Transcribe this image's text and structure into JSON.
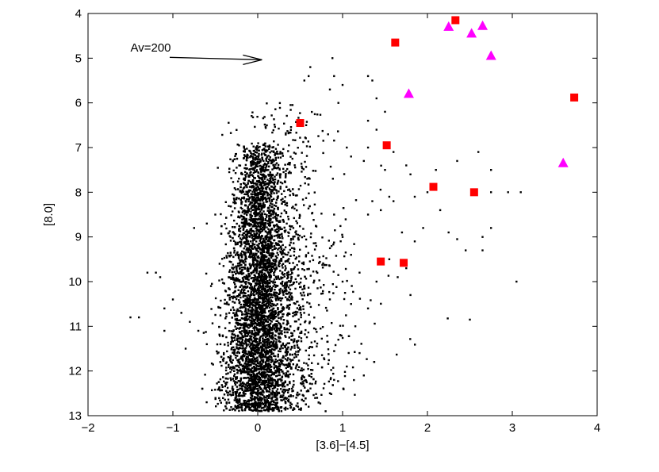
{
  "chart_data": {
    "type": "scatter",
    "title": "",
    "xlabel": "[3.6]−[4.5]",
    "ylabel": "[8.0]",
    "xlim": [
      -2,
      4
    ],
    "ylim": [
      13,
      4
    ],
    "y_inverted": true,
    "grid": false,
    "xticks": [
      -2,
      -1,
      0,
      1,
      2,
      3,
      4
    ],
    "yticks": [
      4,
      5,
      6,
      7,
      8,
      9,
      10,
      11,
      12,
      13
    ],
    "xtick_labels": [
      "−2",
      "−1",
      "0",
      "1",
      "2",
      "3",
      "4"
    ],
    "ytick_labels": [
      "4",
      "5",
      "6",
      "7",
      "8",
      "9",
      "10",
      "11",
      "12",
      "13"
    ],
    "annotation": {
      "text": "Av=200",
      "arrow_from": [
        -1.0,
        5.0
      ],
      "arrow_to": [
        0.05,
        5.0
      ]
    },
    "series": [
      {
        "marker": "dot",
        "color": "#000000",
        "cloud": [
          {
            "x_center": 0.0,
            "y_min": 6.9,
            "y_max": 12.9,
            "x_spread_top": 0.12,
            "x_spread_bottom": 0.22,
            "count": 5200
          },
          {
            "x_center": 0.25,
            "y_min": 6.0,
            "y_max": 12.6,
            "x_spread_top": 0.25,
            "x_spread_bottom": 0.35,
            "count": 900
          }
        ],
        "extra_points": [
          [
            0.6,
            5.4
          ],
          [
            0.62,
            5.2
          ],
          [
            0.88,
            5.0
          ],
          [
            0.9,
            5.4
          ],
          [
            1.0,
            5.6
          ],
          [
            0.85,
            5.7
          ],
          [
            0.55,
            5.5
          ],
          [
            1.3,
            5.4
          ],
          [
            1.35,
            5.5
          ],
          [
            1.4,
            5.9
          ],
          [
            0.95,
            6.0
          ],
          [
            1.5,
            6.2
          ],
          [
            1.3,
            6.4
          ],
          [
            1.4,
            6.6
          ],
          [
            1.3,
            7.0
          ],
          [
            1.05,
            7.0
          ],
          [
            1.1,
            7.2
          ],
          [
            1.25,
            7.3
          ],
          [
            1.5,
            7.5
          ],
          [
            1.6,
            7.1
          ],
          [
            1.8,
            7.6
          ],
          [
            1.75,
            7.4
          ],
          [
            1.85,
            8.1
          ],
          [
            1.55,
            8.1
          ],
          [
            1.6,
            8.2
          ],
          [
            1.35,
            8.2
          ],
          [
            1.3,
            8.5
          ],
          [
            1.45,
            8.4
          ],
          [
            1.7,
            8.9
          ],
          [
            1.85,
            9.1
          ],
          [
            1.95,
            8.8
          ],
          [
            1.55,
            9.5
          ],
          [
            1.75,
            9.7
          ],
          [
            1.65,
            9.9
          ],
          [
            1.8,
            10.3
          ],
          [
            1.3,
            10.6
          ],
          [
            1.4,
            10.0
          ],
          [
            2.0,
            8.0
          ],
          [
            2.15,
            8.4
          ],
          [
            2.25,
            8.9
          ],
          [
            2.45,
            9.3
          ],
          [
            2.35,
            7.3
          ],
          [
            2.1,
            7.5
          ],
          [
            2.75,
            8.0
          ],
          [
            2.95,
            8.0
          ],
          [
            2.75,
            8.8
          ],
          [
            2.65,
            9.0
          ],
          [
            2.65,
            9.3
          ],
          [
            3.05,
            10.0
          ],
          [
            2.5,
            10.85
          ],
          [
            2.6,
            7.1
          ],
          [
            2.75,
            7.5
          ],
          [
            3.1,
            8.0
          ],
          [
            2.35,
            9.05
          ],
          [
            -1.3,
            9.8
          ],
          [
            -1.2,
            9.8
          ],
          [
            -1.15,
            9.9
          ],
          [
            -1.5,
            10.8
          ],
          [
            -1.4,
            10.8
          ],
          [
            -1.1,
            10.6
          ],
          [
            -1.0,
            10.4
          ],
          [
            -0.9,
            10.7
          ],
          [
            -0.8,
            10.9
          ],
          [
            -0.7,
            11.1
          ],
          [
            -0.75,
            8.8
          ],
          [
            -0.6,
            8.7
          ],
          [
            -0.5,
            8.5
          ],
          [
            -0.45,
            9.6
          ],
          [
            -0.55,
            10.1
          ],
          [
            -0.6,
            11.4
          ],
          [
            -0.4,
            11.6
          ],
          [
            -1.1,
            11.1
          ],
          [
            -0.85,
            11.5
          ],
          [
            0.9,
            8.5
          ],
          [
            1.0,
            9.0
          ],
          [
            1.1,
            9.4
          ],
          [
            1.2,
            9.8
          ],
          [
            1.0,
            10.0
          ],
          [
            1.1,
            10.5
          ],
          [
            1.15,
            11.0
          ],
          [
            0.95,
            11.3
          ],
          [
            1.2,
            11.6
          ],
          [
            1.05,
            11.9
          ],
          [
            0.9,
            12.2
          ],
          [
            0.85,
            12.5
          ],
          [
            1.25,
            12.1
          ],
          [
            0.8,
            12.9
          ],
          [
            0.6,
            12.8
          ],
          [
            0.7,
            12.6
          ]
        ]
      },
      {
        "marker": "square",
        "color": "#ff0000",
        "points": [
          [
            2.33,
            4.15
          ],
          [
            1.62,
            4.65
          ],
          [
            3.73,
            5.88
          ],
          [
            0.5,
            6.45
          ],
          [
            1.52,
            6.95
          ],
          [
            2.07,
            7.88
          ],
          [
            2.55,
            8.0
          ],
          [
            1.45,
            9.55
          ],
          [
            1.72,
            9.58
          ]
        ]
      },
      {
        "marker": "triangle",
        "color": "#ff00ff",
        "points": [
          [
            2.25,
            4.3
          ],
          [
            2.65,
            4.28
          ],
          [
            2.52,
            4.45
          ],
          [
            2.75,
            4.95
          ],
          [
            1.78,
            5.8
          ],
          [
            3.6,
            7.35
          ]
        ]
      }
    ]
  }
}
